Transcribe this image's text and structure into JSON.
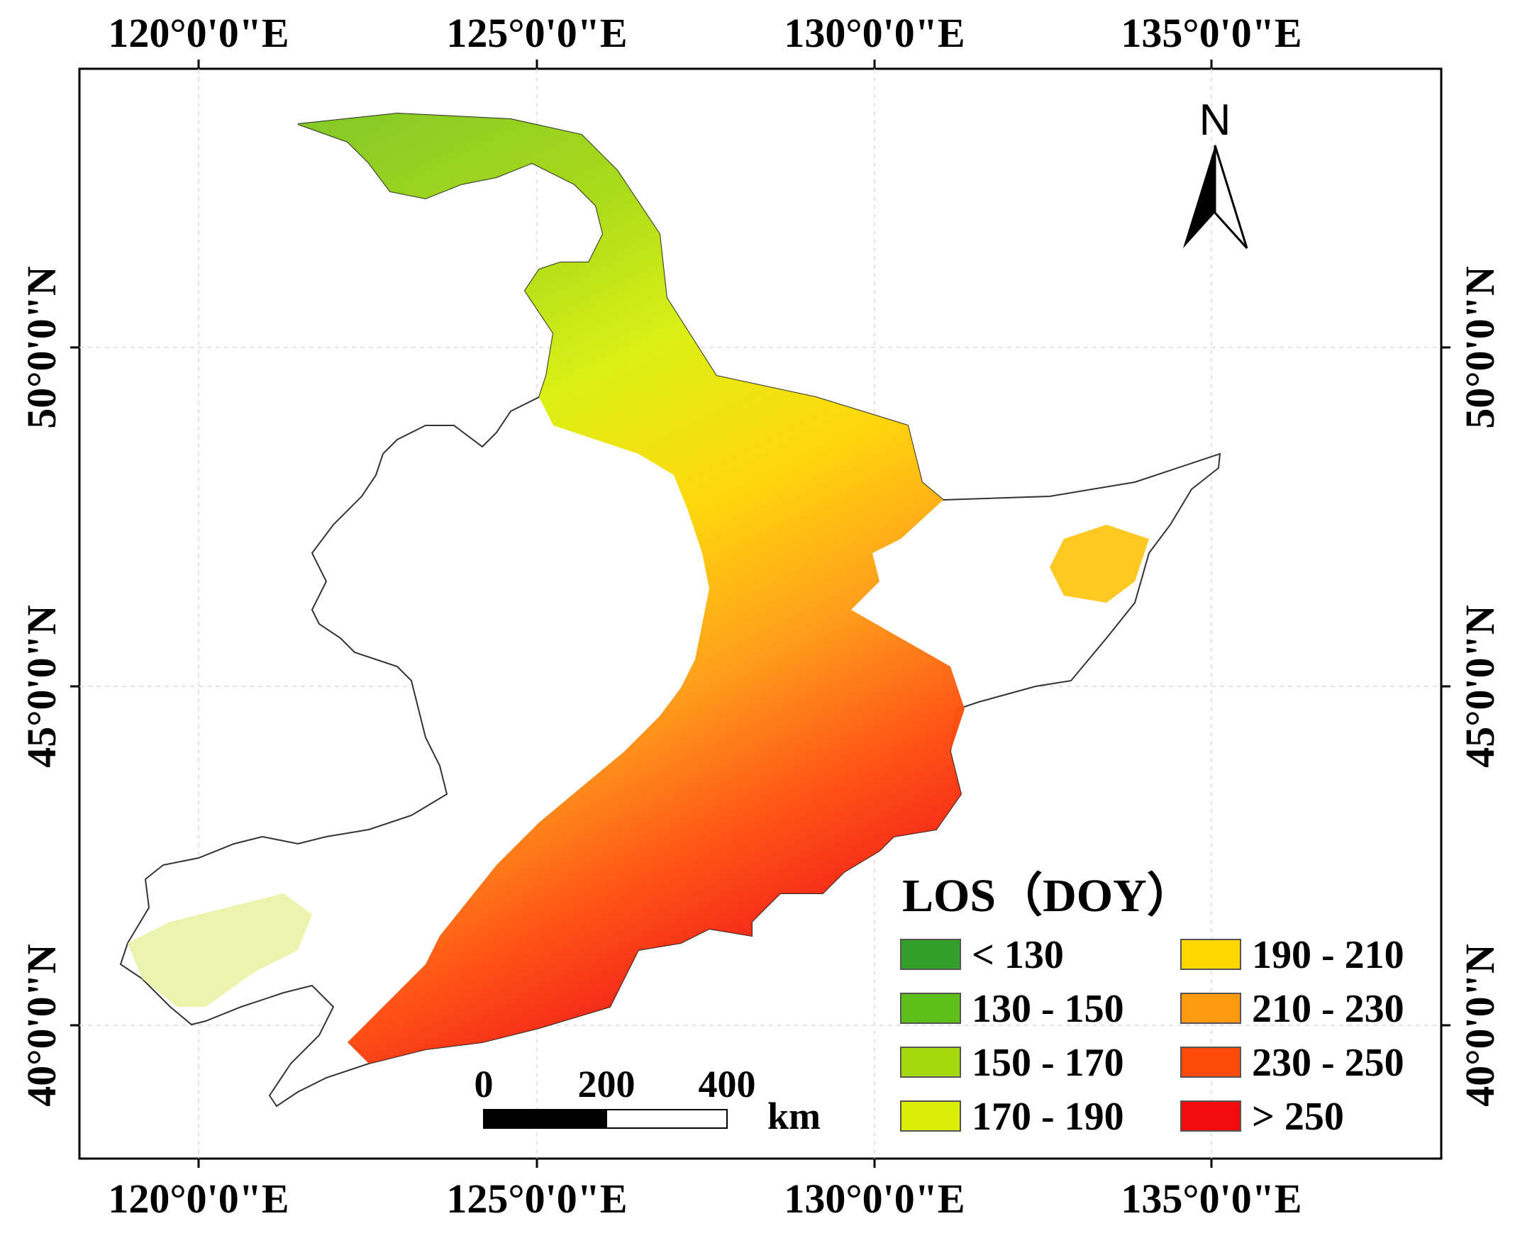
{
  "map": {
    "top_ticks": [
      "120°0'0\"E",
      "125°0'0\"E",
      "130°0'0\"E",
      "135°0'0\"E"
    ],
    "bottom_ticks": [
      "120°0'0\"E",
      "125°0'0\"E",
      "130°0'0\"E",
      "135°0'0\"E"
    ],
    "left_ticks": [
      "50°0'0\"N",
      "45°0'0\"N",
      "40°0'0\"N"
    ],
    "right_ticks": [
      "50°0'0\"N",
      "45°0'0\"N",
      "40°0'0\"N"
    ],
    "north_label": "N",
    "graticule": true
  },
  "legend": {
    "title": "LOS（DOY）",
    "items": [
      {
        "label": "< 130",
        "color": "#33a02c"
      },
      {
        "label": "130 - 150",
        "color": "#5fbf1a"
      },
      {
        "label": "150 - 170",
        "color": "#a6d90f"
      },
      {
        "label": "170 - 190",
        "color": "#d9ef0a"
      },
      {
        "label": "190 - 210",
        "color": "#ffd700"
      },
      {
        "label": "210 - 230",
        "color": "#ff9a10"
      },
      {
        "label": "230 - 250",
        "color": "#ff4a0a"
      },
      {
        "label": "> 250",
        "color": "#f20c0c"
      }
    ]
  },
  "scale_bar": {
    "labels": [
      "0",
      "200",
      "400"
    ],
    "unit": "km"
  }
}
